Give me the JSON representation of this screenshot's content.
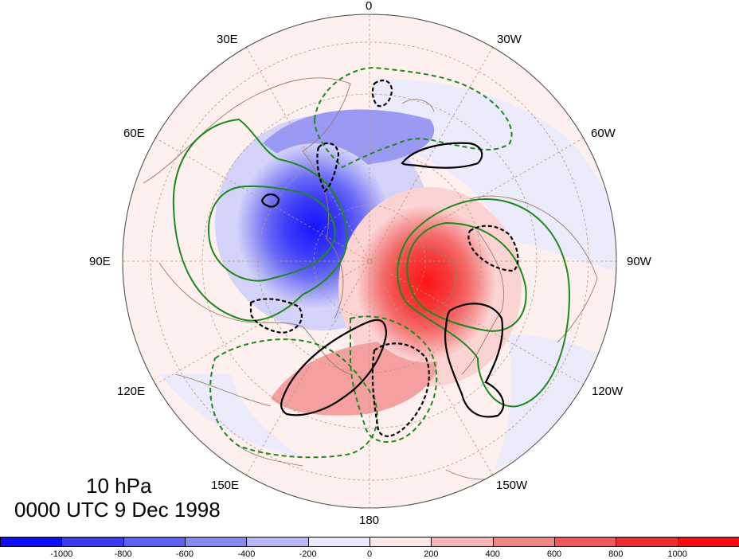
{
  "map": {
    "projection": "north-polar-stereographic",
    "longitude_labels": {
      "top": "0",
      "upper_left": "30E",
      "upper_right": "30W",
      "left_upper": "60E",
      "right_upper": "60W",
      "left": "90E",
      "right": "90W",
      "left_lower": "120E",
      "right_lower": "120W",
      "lower_left": "150E",
      "lower_right": "150W",
      "bottom": "180"
    },
    "title_line1": "10 hPa",
    "title_line2": "0000 UTC 9 Dec 1998",
    "colors": {
      "negative_strong": "#1a1aff",
      "positive_strong": "#ff1a1a",
      "contour_green": "#1b8a1b",
      "contour_black": "#000000",
      "coast": "#9a7b62",
      "grid": "#b8977a"
    }
  },
  "colorbar": {
    "ticks": [
      "-1000",
      "-800",
      "-600",
      "-400",
      "-200",
      "0",
      "200",
      "400",
      "600",
      "800",
      "1000"
    ],
    "colors": [
      "#0d0dff",
      "#3a3af5",
      "#6060f5",
      "#8888f5",
      "#b6b6f8",
      "#e9e9fb",
      "#fde8e8",
      "#f8b4b4",
      "#f58484",
      "#f25656",
      "#ef2c2c",
      "#ff0a0a"
    ]
  }
}
